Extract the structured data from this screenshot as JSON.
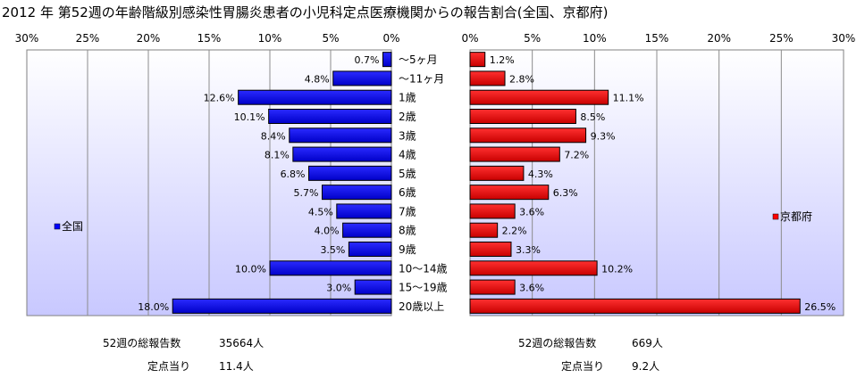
{
  "chart_data": {
    "type": "bar",
    "title": "2012 年 第52週の年齢階級別感染性胃腸炎患者の小児科定点医療機関からの報告割合(全国、京都府)",
    "categories": [
      "～5ヶ月",
      "～11ヶ月",
      "1歳",
      "2歳",
      "3歳",
      "4歳",
      "5歳",
      "6歳",
      "7歳",
      "8歳",
      "9歳",
      "10～14歳",
      "15～19歳",
      "20歳以上"
    ],
    "xlim": [
      0,
      30
    ],
    "ticks": [
      "0%",
      "5%",
      "10%",
      "15%",
      "20%",
      "25%",
      "30%"
    ],
    "grid": true,
    "series": [
      {
        "name": "全国",
        "color": "#0000ff",
        "values": [
          0.7,
          4.8,
          12.6,
          10.1,
          8.4,
          8.1,
          6.8,
          5.7,
          4.5,
          4.0,
          3.5,
          10.0,
          3.0,
          18.0
        ],
        "labels": [
          "0.7%",
          "4.8%",
          "12.6%",
          "10.1%",
          "8.4%",
          "8.1%",
          "6.8%",
          "5.7%",
          "4.5%",
          "4.0%",
          "3.5%",
          "10.0%",
          "3.0%",
          "18.0%"
        ]
      },
      {
        "name": "京都府",
        "color": "#ff0000",
        "values": [
          1.2,
          2.8,
          11.1,
          8.5,
          9.3,
          7.2,
          4.3,
          6.3,
          3.6,
          2.2,
          3.3,
          10.2,
          3.6,
          26.5
        ],
        "labels": [
          "1.2%",
          "2.8%",
          "11.1%",
          "8.5%",
          "9.3%",
          "7.2%",
          "4.3%",
          "6.3%",
          "3.6%",
          "2.2%",
          "3.3%",
          "10.2%",
          "3.6%",
          "26.5%"
        ]
      }
    ]
  },
  "stats": {
    "left": {
      "total_label": "52週の総報告数",
      "total_value": "35664人",
      "per_label": "定点当り",
      "per_value": "11.4人"
    },
    "right": {
      "total_label": "52週の総報告数",
      "total_value": "669人",
      "per_label": "定点当り",
      "per_value": "9.2人"
    }
  },
  "colors": {
    "plot_bg_top": "#ffffff",
    "plot_bg_bottom": "#c8c8ff"
  }
}
